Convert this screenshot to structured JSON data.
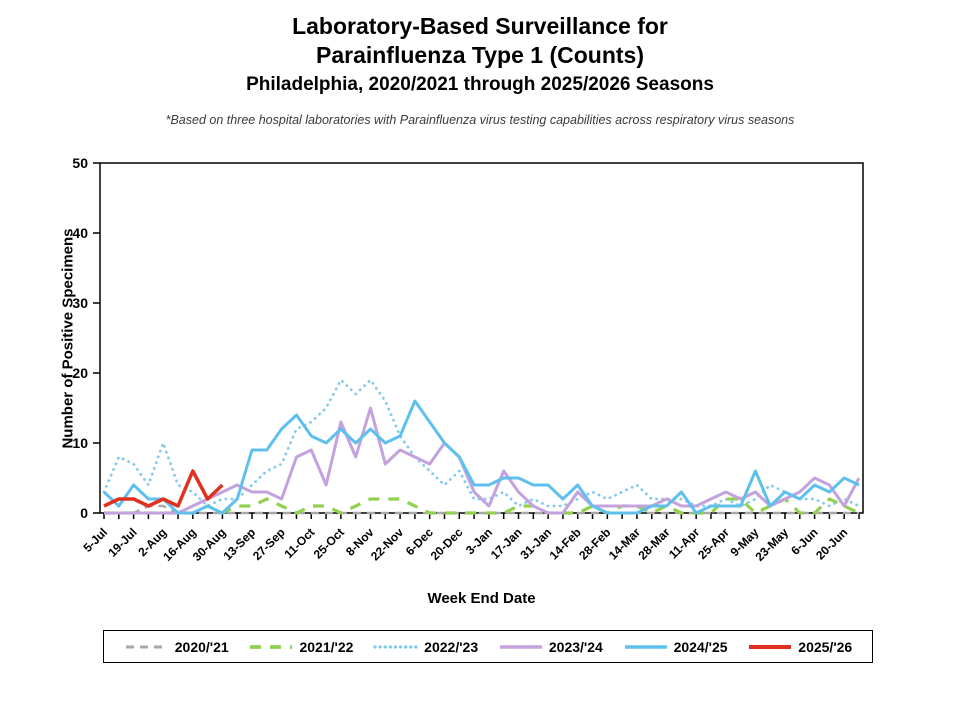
{
  "title": {
    "line1": "Laboratory-Based Surveillance for",
    "line2": "Parainfluenza Type 1 (Counts)",
    "line3": "Philadelphia, 2020/2021 through 2025/2026 Seasons"
  },
  "subtitle": "*Based on three hospital laboratories with Parainfluenza virus testing capabilities across respiratory virus seasons",
  "chart_data": {
    "type": "line",
    "title": "Laboratory-Based Surveillance for Parainfluenza Type 1 (Counts)",
    "xlabel": "Week End Date",
    "ylabel": "Number of Positive Specimens",
    "ylim": [
      0,
      50
    ],
    "y_ticks": [
      0,
      10,
      20,
      30,
      40,
      50
    ],
    "n_points": 52,
    "x_label_every": 2,
    "grid": false,
    "legend_position": "bottom",
    "x_tick_labels": [
      "5-Jul",
      "19-Jul",
      "2-Aug",
      "16-Aug",
      "30-Aug",
      "13-Sep",
      "27-Sep",
      "11-Oct",
      "25-Oct",
      "8-Nov",
      "22-Nov",
      "6-Dec",
      "20-Dec",
      "3-Jan",
      "17-Jan",
      "31-Jan",
      "14-Feb",
      "28-Feb",
      "14-Mar",
      "28-Mar",
      "11-Apr",
      "25-Apr",
      "9-May",
      "23-May",
      "6-Jun",
      "20-Jun"
    ],
    "series": [
      {
        "name": "2020/'21",
        "color": "#a8a8a8",
        "style": "dashed",
        "stroke_width": 2.5,
        "values": [
          0,
          0,
          0,
          1,
          1,
          0,
          0,
          0,
          0,
          0,
          0,
          0,
          0,
          0,
          0,
          0,
          0,
          0,
          0,
          0,
          0,
          0,
          0,
          0,
          0,
          0,
          0,
          0,
          0,
          0,
          0,
          0,
          0,
          0,
          0,
          0,
          0,
          0,
          0,
          0,
          0,
          0,
          0,
          0,
          0,
          0,
          0,
          0,
          0,
          0,
          0,
          0
        ]
      },
      {
        "name": "2021/'22",
        "color": "#92d050",
        "style": "dashed-long",
        "stroke_width": 3.2,
        "values": [
          0,
          0,
          0,
          0,
          0,
          0,
          0,
          1,
          0,
          1,
          1,
          2,
          1,
          0,
          1,
          1,
          0,
          1,
          2,
          2,
          2,
          1,
          0,
          0,
          0,
          0,
          0,
          0,
          1,
          1,
          0,
          0,
          0,
          1,
          0,
          1,
          1,
          0,
          1,
          0,
          0,
          0,
          2,
          2,
          0,
          1,
          2,
          0,
          0,
          2,
          1,
          0
        ]
      },
      {
        "name": "2022/'23",
        "color": "#82c9ee",
        "style": "dotted",
        "stroke_width": 2.8,
        "values": [
          3,
          8,
          7,
          4,
          10,
          4,
          3,
          1,
          2,
          2,
          4,
          6,
          7,
          12,
          13,
          15,
          19,
          17,
          19,
          16,
          11,
          8,
          6,
          4,
          6,
          2,
          2,
          3,
          1,
          2,
          1,
          1,
          2,
          3,
          2,
          3,
          4,
          2,
          2,
          2,
          1,
          1,
          2,
          1,
          2,
          4,
          3,
          2,
          2,
          1,
          2,
          1
        ]
      },
      {
        "name": "2023/'24",
        "color": "#c3a2de",
        "style": "solid",
        "stroke_width": 3,
        "values": [
          0,
          0,
          0,
          0,
          0,
          0,
          1,
          2,
          3,
          4,
          3,
          3,
          2,
          8,
          9,
          4,
          13,
          8,
          15,
          7,
          9,
          8,
          7,
          10,
          8,
          3,
          1,
          6,
          3,
          1,
          0,
          0,
          3,
          1,
          1,
          1,
          1,
          1,
          2,
          1,
          1,
          2,
          3,
          2,
          3,
          1,
          2,
          3,
          5,
          4,
          1,
          5
        ]
      },
      {
        "name": "2024/'25",
        "color": "#5fc0ee",
        "style": "solid",
        "stroke_width": 3,
        "values": [
          3,
          1,
          4,
          2,
          2,
          0,
          0,
          1,
          0,
          2,
          9,
          9,
          12,
          14,
          11,
          10,
          12,
          10,
          12,
          10,
          11,
          16,
          13,
          10,
          8,
          4,
          4,
          5,
          5,
          4,
          4,
          2,
          4,
          1,
          0,
          0,
          0,
          1,
          1,
          3,
          0,
          1,
          1,
          1,
          6,
          1,
          3,
          2,
          4,
          3,
          5,
          4
        ]
      },
      {
        "name": "2025/'26",
        "color": "#e0301e",
        "style": "solid",
        "stroke_width": 3.5,
        "values": [
          1,
          2,
          2,
          1,
          2,
          1,
          6,
          2,
          4
        ]
      }
    ]
  }
}
